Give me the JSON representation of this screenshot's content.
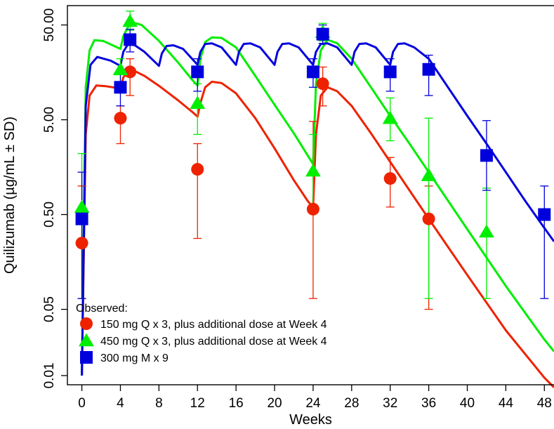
{
  "chart_data": {
    "type": "line",
    "xlabel": "Weeks",
    "ylabel": "Quilizumab (µg/mL ± SD)",
    "xlim": [
      -1.5,
      49
    ],
    "ylim": [
      0.008,
      80
    ],
    "y_scale": "log",
    "x_ticks": [
      0,
      4,
      8,
      12,
      16,
      20,
      24,
      28,
      32,
      36,
      40,
      44,
      48
    ],
    "y_ticks": [
      0.01,
      0.05,
      0.5,
      5,
      50
    ],
    "y_tick_labels": [
      "0.01",
      "0.05",
      "0.50",
      "5.00",
      "50.00"
    ],
    "grid": false,
    "legend": {
      "position": "bottom-left",
      "title": "Observed:",
      "entries": [
        {
          "label": "150 mg Q x 3, plus additional dose at Week 4",
          "color": "#ee2200",
          "marker": "circle"
        },
        {
          "label": "450 mg Q x 3, plus additional dose at Week 4",
          "color": "#00ee00",
          "marker": "triangle"
        },
        {
          "label": "300 mg M x 9",
          "color": "#0000dd",
          "marker": "square"
        }
      ]
    },
    "observed": [
      {
        "name": "150 mg Q x 3, plus additional dose at Week 4",
        "color": "#ee2200",
        "marker": "circle",
        "points": [
          {
            "x": 0,
            "y": 0.25,
            "lo": 0.065,
            "hi": 1.0
          },
          {
            "x": 4,
            "y": 5.2,
            "lo": 2.8,
            "hi": 7.0
          },
          {
            "x": 5,
            "y": 16,
            "lo": 9,
            "hi": 22
          },
          {
            "x": 12,
            "y": 1.5,
            "lo": 0.28,
            "hi": 2.8
          },
          {
            "x": 24,
            "y": 0.57,
            "lo": 0.065,
            "hi": 4.8
          },
          {
            "x": 25,
            "y": 12,
            "lo": 7,
            "hi": 18
          },
          {
            "x": 32,
            "y": 1.2,
            "lo": 0.6,
            "hi": 2.0
          },
          {
            "x": 36,
            "y": 0.45,
            "lo": 0.05,
            "hi": 1.0
          }
        ]
      },
      {
        "name": "450 mg Q x 3, plus additional dose at Week 4",
        "color": "#00ee00",
        "marker": "triangle",
        "points": [
          {
            "x": 0,
            "y": 0.6,
            "lo": 0.065,
            "hi": 2.2
          },
          {
            "x": 4,
            "y": 17,
            "lo": 12,
            "hi": 22
          },
          {
            "x": 5,
            "y": 55,
            "lo": 44,
            "hi": 70
          },
          {
            "x": 12,
            "y": 7.5,
            "lo": 3.5,
            "hi": 12
          },
          {
            "x": 24,
            "y": 1.45,
            "lo": 0.6,
            "hi": 3.5
          },
          {
            "x": 25,
            "y": 42,
            "lo": 34,
            "hi": 52
          },
          {
            "x": 32,
            "y": 5.2,
            "lo": 3.0,
            "hi": 8.5
          },
          {
            "x": 36,
            "y": 1.3,
            "lo": 0.065,
            "hi": 5.2
          },
          {
            "x": 42,
            "y": 0.33,
            "lo": 0.065,
            "hi": 0.95
          }
        ]
      },
      {
        "name": "300 mg M x 9",
        "color": "#0000dd",
        "marker": "square",
        "points": [
          {
            "x": 0,
            "y": 0.45,
            "lo": 0.065,
            "hi": 1.4
          },
          {
            "x": 4,
            "y": 11,
            "lo": 7,
            "hi": 16
          },
          {
            "x": 5,
            "y": 35,
            "lo": 26,
            "hi": 45
          },
          {
            "x": 12,
            "y": 16,
            "lo": 10,
            "hi": 22
          },
          {
            "x": 24,
            "y": 16,
            "lo": 11,
            "hi": 22
          },
          {
            "x": 25,
            "y": 40,
            "lo": 32,
            "hi": 50
          },
          {
            "x": 32,
            "y": 16,
            "lo": 10,
            "hi": 22
          },
          {
            "x": 36,
            "y": 17,
            "lo": 9,
            "hi": 24
          },
          {
            "x": 42,
            "y": 2.1,
            "lo": 0.9,
            "hi": 4.9
          },
          {
            "x": 48,
            "y": 0.5,
            "lo": 0.065,
            "hi": 1.0
          }
        ]
      }
    ],
    "model_curves": [
      {
        "name": "150 mg model",
        "color": "#ee2200",
        "points": [
          [
            0,
            0.01
          ],
          [
            0.4,
            3.5
          ],
          [
            0.8,
            9.0
          ],
          [
            1.5,
            11.5
          ],
          [
            2.5,
            11.3
          ],
          [
            4,
            10.7
          ],
          [
            4.3,
            14.0
          ],
          [
            4.8,
            16.5
          ],
          [
            5.5,
            16.3
          ],
          [
            6.5,
            14.5
          ],
          [
            8,
            11.4
          ],
          [
            10,
            8.0
          ],
          [
            11.5,
            6.0
          ],
          [
            12,
            5.4
          ],
          [
            12.3,
            7.5
          ],
          [
            12.8,
            11.0
          ],
          [
            13.5,
            12.6
          ],
          [
            14.5,
            12.2
          ],
          [
            16,
            9.5
          ],
          [
            18,
            5.2
          ],
          [
            20,
            2.5
          ],
          [
            22,
            1.15
          ],
          [
            23.5,
            0.68
          ],
          [
            24,
            0.6
          ],
          [
            24.3,
            3.5
          ],
          [
            24.8,
            9.0
          ],
          [
            25.5,
            11.0
          ],
          [
            26.5,
            10.0
          ],
          [
            28,
            7.0
          ],
          [
            30,
            3.6
          ],
          [
            32,
            1.8
          ],
          [
            34,
            0.9
          ],
          [
            36,
            0.45
          ],
          [
            40,
            0.115
          ],
          [
            44,
            0.03
          ],
          [
            48,
            0.0095
          ],
          [
            49,
            0.0075
          ]
        ]
      },
      {
        "name": "450 mg model",
        "color": "#00ee00",
        "points": [
          [
            0,
            0.01
          ],
          [
            0.4,
            11
          ],
          [
            0.8,
            27
          ],
          [
            1.3,
            34.5
          ],
          [
            2.2,
            34
          ],
          [
            4,
            28
          ],
          [
            4.3,
            38
          ],
          [
            4.8,
            48
          ],
          [
            5.3,
            53
          ],
          [
            6.2,
            50
          ],
          [
            8,
            34
          ],
          [
            10,
            20
          ],
          [
            11.5,
            13
          ],
          [
            12,
            11.5
          ],
          [
            12.3,
            22
          ],
          [
            12.8,
            33
          ],
          [
            13.5,
            37
          ],
          [
            14.5,
            36.5
          ],
          [
            16,
            29
          ],
          [
            18,
            14.5
          ],
          [
            20,
            7.2
          ],
          [
            22,
            3.6
          ],
          [
            23.5,
            2.05
          ],
          [
            24,
            1.7
          ],
          [
            24.3,
            12
          ],
          [
            24.8,
            27
          ],
          [
            25.5,
            35
          ],
          [
            26.5,
            32
          ],
          [
            28,
            22
          ],
          [
            30,
            11
          ],
          [
            32,
            5.5
          ],
          [
            34,
            2.8
          ],
          [
            36,
            1.4
          ],
          [
            40,
            0.35
          ],
          [
            44,
            0.088
          ],
          [
            48,
            0.024
          ],
          [
            49,
            0.018
          ]
        ]
      },
      {
        "name": "300 mg model",
        "color": "#0000dd",
        "points": [
          [
            0,
            0.01
          ],
          [
            0.4,
            7
          ],
          [
            0.9,
            19
          ],
          [
            1.6,
            23
          ],
          [
            3,
            21
          ],
          [
            4,
            18.5
          ],
          [
            4.3,
            26
          ],
          [
            4.8,
            31.5
          ],
          [
            5.5,
            30.5
          ],
          [
            6.5,
            26
          ],
          [
            8,
            18.5
          ],
          [
            8.3,
            25
          ],
          [
            8.8,
            30
          ],
          [
            9.5,
            30.5
          ],
          [
            10.5,
            28
          ],
          [
            12,
            19
          ],
          [
            12.3,
            26
          ],
          [
            12.8,
            31.5
          ],
          [
            13.5,
            32
          ],
          [
            14.5,
            29
          ],
          [
            16,
            19
          ],
          [
            16.3,
            26
          ],
          [
            16.8,
            31.5
          ],
          [
            17.5,
            32
          ],
          [
            18.5,
            29
          ],
          [
            20,
            19
          ],
          [
            20.3,
            26
          ],
          [
            20.8,
            31.5
          ],
          [
            21.5,
            32
          ],
          [
            22.5,
            29
          ],
          [
            24,
            19
          ],
          [
            24.3,
            26
          ],
          [
            24.8,
            31.5
          ],
          [
            25.5,
            32
          ],
          [
            26.5,
            29
          ],
          [
            28,
            19
          ],
          [
            28.3,
            26
          ],
          [
            28.8,
            31.5
          ],
          [
            29.5,
            32
          ],
          [
            30.5,
            29
          ],
          [
            32,
            19
          ],
          [
            32.3,
            26
          ],
          [
            32.8,
            31.5
          ],
          [
            33.5,
            32
          ],
          [
            34.5,
            29
          ],
          [
            36,
            22
          ],
          [
            38,
            11
          ],
          [
            40,
            5.5
          ],
          [
            42,
            2.8
          ],
          [
            44,
            1.4
          ],
          [
            46,
            0.7
          ],
          [
            48,
            0.36
          ],
          [
            49,
            0.26
          ]
        ]
      }
    ]
  }
}
